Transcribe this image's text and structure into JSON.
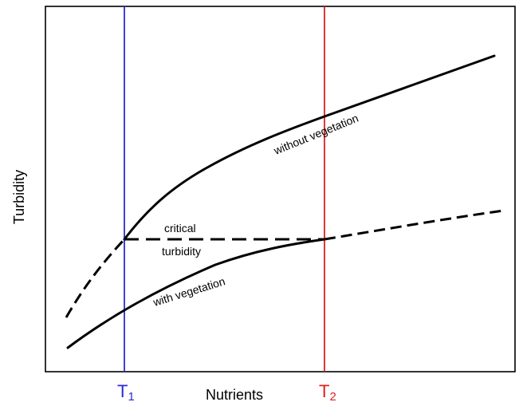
{
  "axes": {
    "x_title": "Nutrients",
    "y_title": "Turbidity"
  },
  "markers": {
    "t1": {
      "main": "T",
      "sub": "1",
      "color": "#2b2bd6"
    },
    "t2": {
      "main": "T",
      "sub": "2",
      "color": "#e0201f"
    }
  },
  "labels": {
    "without_vegetation": "without vegetation",
    "with_vegetation": "with vegetation",
    "critical": "critical",
    "turbidity": "turbidity"
  },
  "colors": {
    "curve": "#000000",
    "frame": "#000000"
  }
}
